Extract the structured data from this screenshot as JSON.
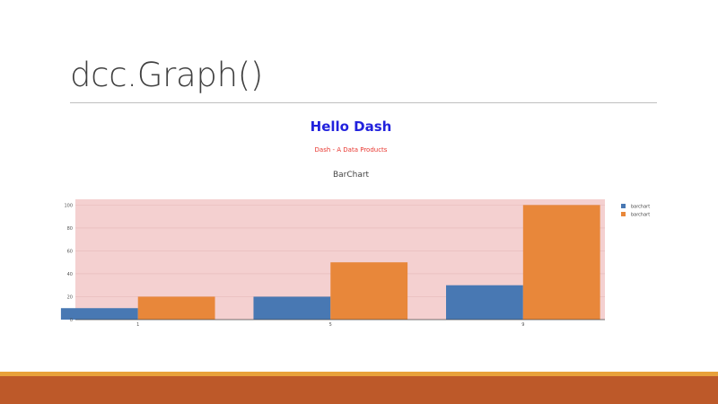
{
  "slide": {
    "title": "dcc.Graph()"
  },
  "app": {
    "heading": "Hello Dash",
    "subheading": "Dash - A Data Products"
  },
  "colors": {
    "heading": "#2222dd",
    "subheading": "#e8362f",
    "plot_bg": "#f4d0d0",
    "series_1": "#4878b3",
    "series_2": "#e8873a",
    "footer_bar": "#bd5929",
    "footer_accent": "#e8a13a"
  },
  "chart_data": {
    "type": "bar",
    "title": "BarChart",
    "x": [
      1,
      5,
      9
    ],
    "series": [
      {
        "name": "barchart",
        "values": [
          10,
          20,
          30
        ]
      },
      {
        "name": "barchart",
        "values": [
          20,
          50,
          100
        ]
      }
    ],
    "ylim": [
      0,
      105
    ],
    "yticks": [
      0,
      20,
      40,
      60,
      80,
      100
    ],
    "xlim": [
      -0.3,
      10.7
    ],
    "grid": true,
    "legend": "top-right"
  }
}
